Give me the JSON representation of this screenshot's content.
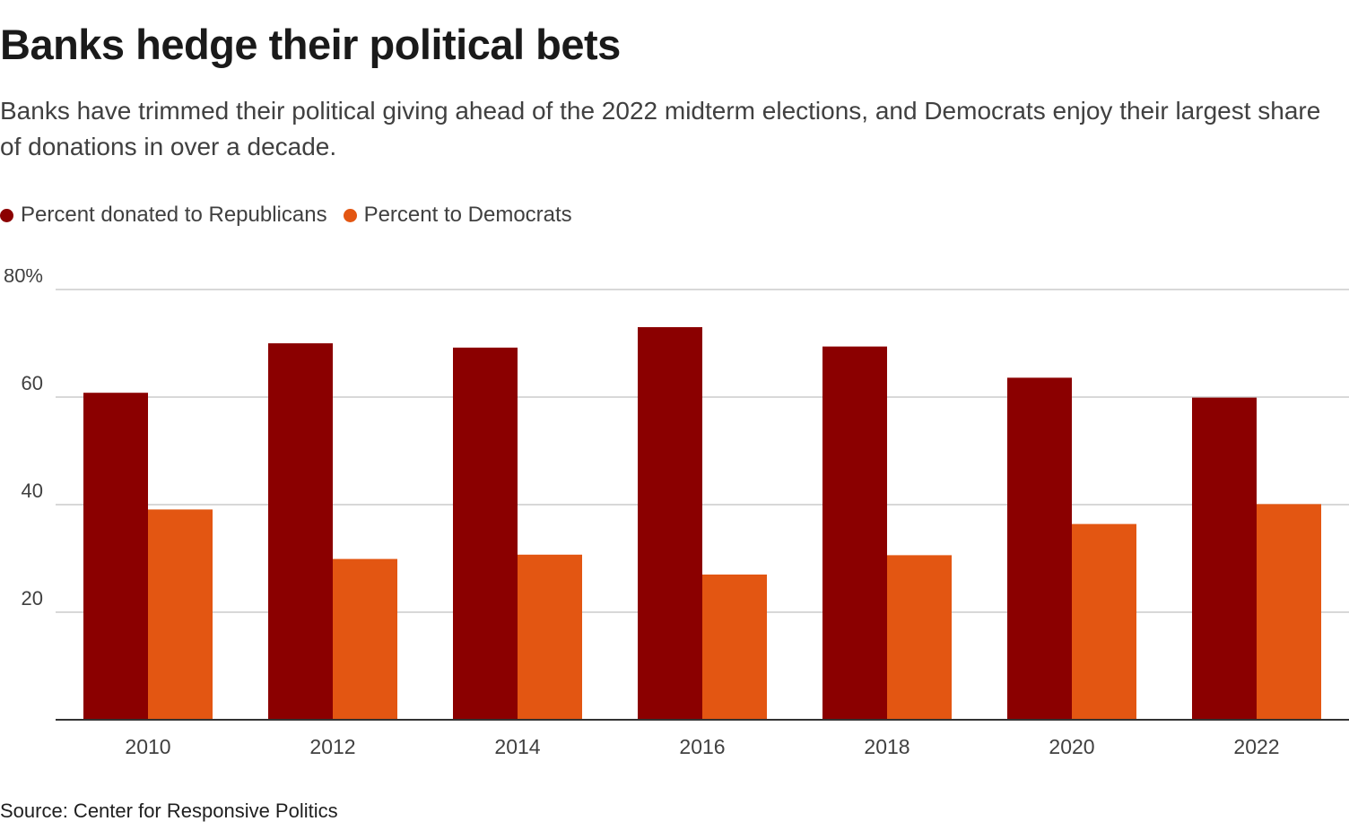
{
  "title": "Banks hedge their political bets",
  "subtitle": "Banks have trimmed their political giving ahead of the 2022 midterm elections, and Democrats enjoy their largest share of donations in over a decade.",
  "source": "Source: Center for Responsive Politics",
  "chart_data": {
    "type": "bar",
    "title": "Banks hedge their political bets",
    "xlabel": "",
    "ylabel": "",
    "categories": [
      "2010",
      "2012",
      "2014",
      "2016",
      "2018",
      "2020",
      "2022"
    ],
    "series": [
      {
        "name": "Percent donated to Republicans",
        "color": "#8b0000",
        "values": [
          60.8,
          70.0,
          69.2,
          73.0,
          69.4,
          63.6,
          59.9
        ]
      },
      {
        "name": "Percent to Democrats",
        "color": "#e35612",
        "values": [
          39.1,
          29.9,
          30.7,
          27.0,
          30.6,
          36.4,
          40.1
        ]
      }
    ],
    "ylim": [
      0,
      80
    ],
    "yticks": [
      20,
      40,
      60,
      80
    ],
    "ytick_labels": [
      "20",
      "40",
      "60",
      "80%"
    ],
    "grid": true,
    "legend_position": "top-left"
  }
}
